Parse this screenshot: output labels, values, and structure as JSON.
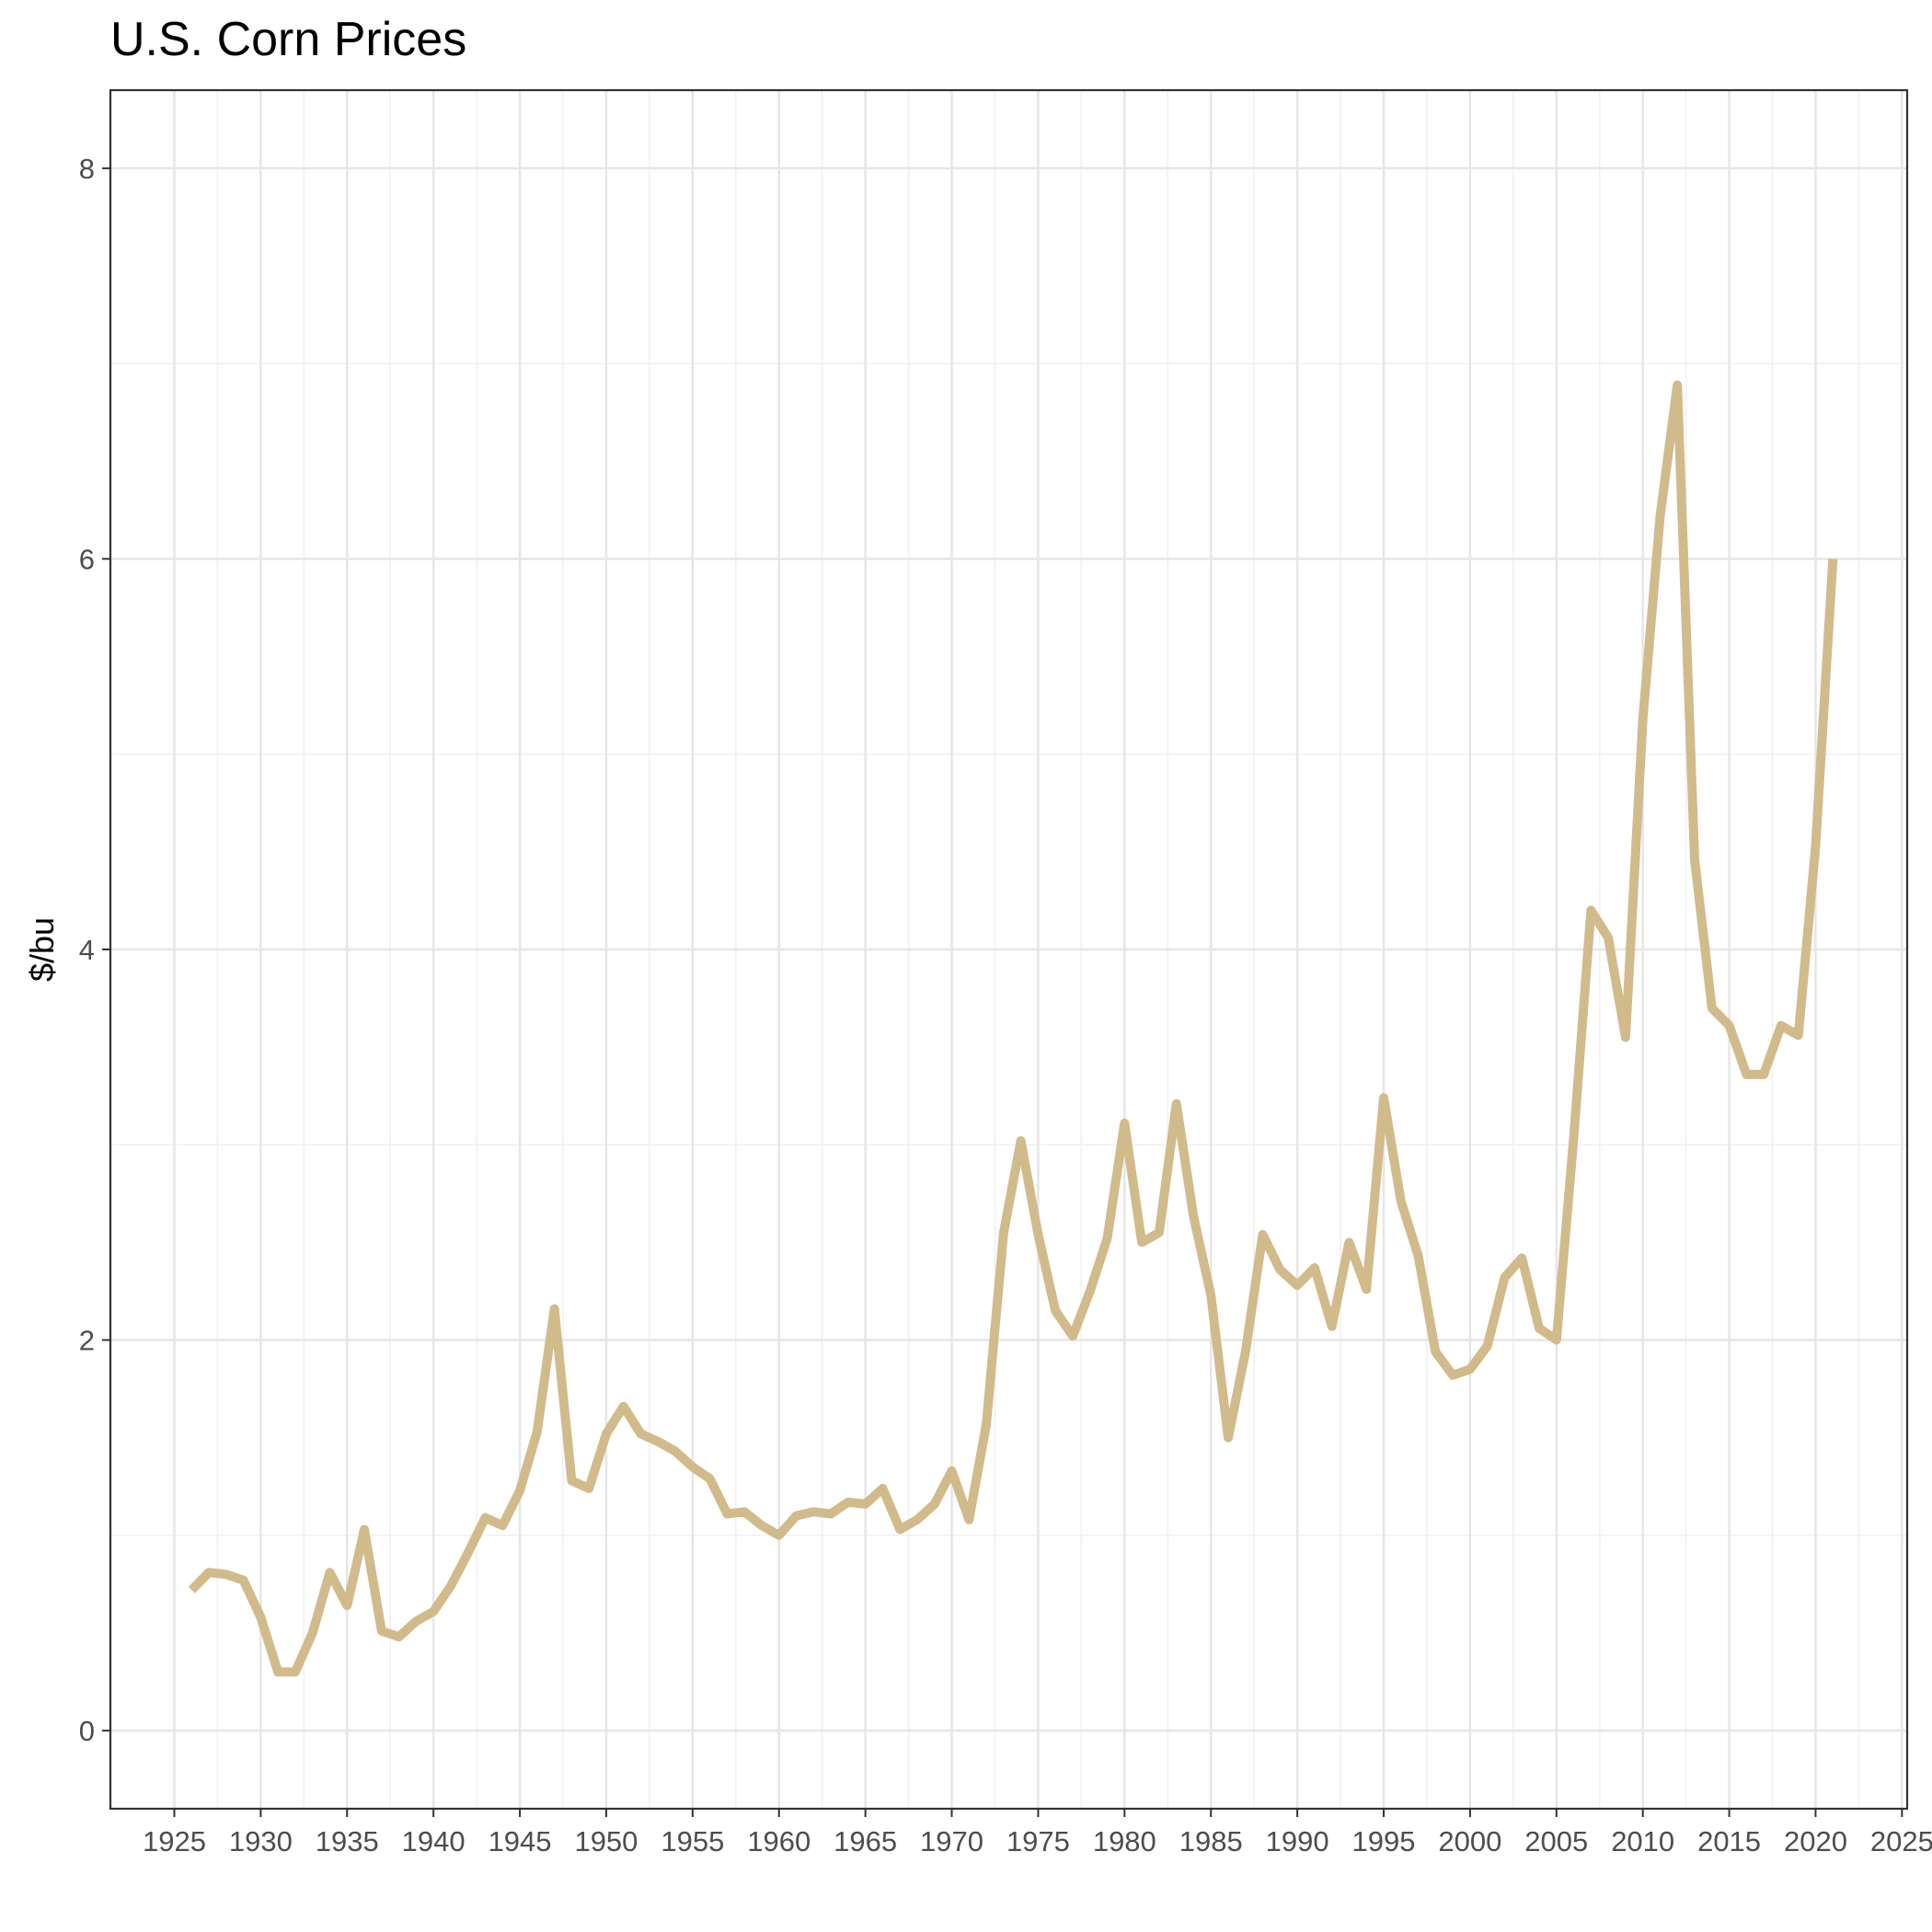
{
  "chart_data": {
    "type": "line",
    "title": "U.S. Corn Prices",
    "xlabel": "",
    "ylabel": "$/bu",
    "xlim": [
      1921.3,
      2025.3
    ],
    "ylim": [
      -0.4,
      8.4
    ],
    "x_ticks": [
      1925,
      1930,
      1935,
      1940,
      1945,
      1950,
      1955,
      1960,
      1965,
      1970,
      1975,
      1980,
      1985,
      1990,
      1995,
      2000,
      2005,
      2010,
      2015,
      2020,
      2025
    ],
    "y_ticks": [
      0,
      2,
      4,
      6,
      8
    ],
    "grid": true,
    "line_color": "#d2bb8b",
    "series": [
      {
        "x": [
          1926,
          1927,
          1928,
          1929,
          1930,
          1931,
          1932,
          1933,
          1934,
          1935,
          1936,
          1937,
          1938,
          1939,
          1940,
          1941,
          1942,
          1943,
          1944,
          1945,
          1946,
          1947,
          1948,
          1949,
          1950,
          1951,
          1952,
          1953,
          1954,
          1955,
          1956,
          1957,
          1958,
          1959,
          1960,
          1961,
          1962,
          1963,
          1964,
          1965,
          1966,
          1967,
          1968,
          1969,
          1970,
          1971,
          1972,
          1973,
          1974,
          1975,
          1976,
          1977,
          1978,
          1979,
          1980,
          1981,
          1982,
          1983,
          1984,
          1985,
          1986,
          1987,
          1988,
          1989,
          1990,
          1991,
          1992,
          1993,
          1994,
          1995,
          1996,
          1997,
          1998,
          1999,
          2000,
          2001,
          2002,
          2003,
          2004,
          2005,
          2006,
          2007,
          2008,
          2009,
          2010,
          2011,
          2012,
          2013,
          2014,
          2015,
          2016,
          2017,
          2018,
          2019,
          2020,
          2021
        ],
        "y": [
          0.72,
          0.81,
          0.8,
          0.77,
          0.58,
          0.3,
          0.3,
          0.5,
          0.81,
          0.64,
          1.03,
          0.51,
          0.48,
          0.56,
          0.61,
          0.74,
          0.91,
          1.09,
          1.05,
          1.23,
          1.53,
          2.16,
          1.28,
          1.24,
          1.52,
          1.66,
          1.52,
          1.48,
          1.43,
          1.35,
          1.29,
          1.11,
          1.12,
          1.05,
          1.0,
          1.1,
          1.12,
          1.11,
          1.17,
          1.16,
          1.24,
          1.03,
          1.08,
          1.16,
          1.33,
          1.08,
          1.57,
          2.55,
          3.02,
          2.54,
          2.15,
          2.02,
          2.25,
          2.52,
          3.11,
          2.5,
          2.55,
          3.21,
          2.63,
          2.23,
          1.5,
          1.94,
          2.54,
          2.36,
          2.28,
          2.37,
          2.07,
          2.5,
          2.26,
          3.24,
          2.71,
          2.43,
          1.94,
          1.82,
          1.85,
          1.97,
          2.32,
          2.42,
          2.06,
          2.0,
          3.04,
          4.2,
          4.06,
          3.55,
          5.18,
          6.22,
          6.89,
          4.46,
          3.7,
          3.61,
          3.36,
          3.36,
          3.61,
          3.56,
          4.53,
          6.0
        ]
      }
    ]
  }
}
